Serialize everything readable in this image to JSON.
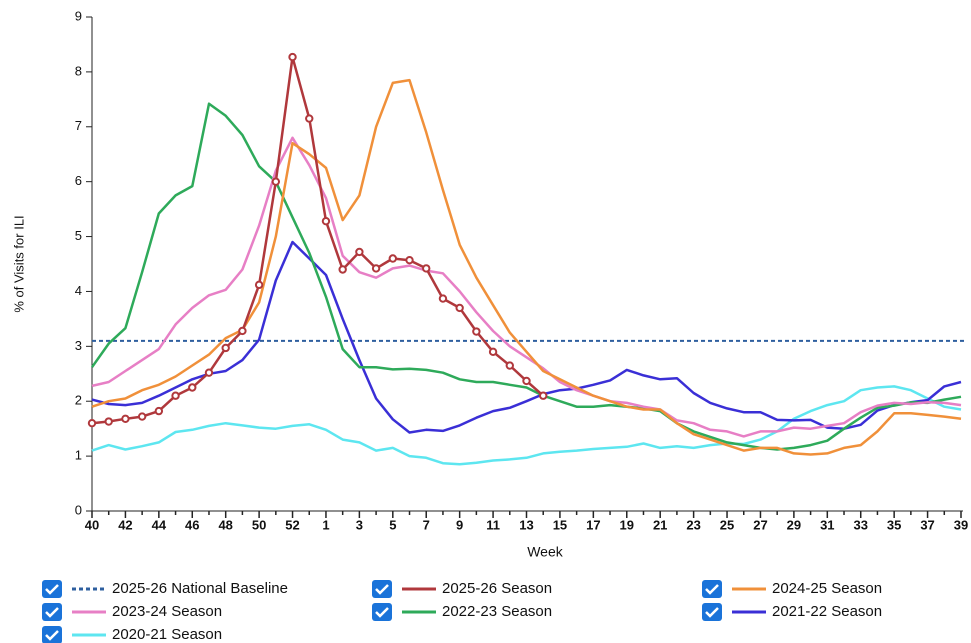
{
  "chart_data": {
    "type": "line",
    "y_label": "% of Visits for ILI",
    "x_label": "Week",
    "categories": [
      40,
      null,
      42,
      null,
      44,
      null,
      46,
      null,
      48,
      null,
      50,
      null,
      52,
      null,
      1,
      null,
      3,
      null,
      5,
      null,
      7,
      null,
      9,
      null,
      11,
      null,
      13,
      null,
      15,
      null,
      17,
      null,
      19,
      null,
      21,
      null,
      23,
      null,
      25,
      null,
      27,
      null,
      29,
      null,
      31,
      null,
      33,
      null,
      35,
      null,
      37,
      null,
      39
    ],
    "ylim": [
      0,
      9
    ],
    "yticks": [
      0,
      1,
      2,
      3,
      4,
      5,
      6,
      7,
      8,
      9
    ],
    "baseline": {
      "name": "2025-26 National Baseline",
      "value": 3.1,
      "color": "#2e5f9f"
    },
    "series": [
      {
        "name": "2025-26 Season",
        "color": "#b0383c",
        "markers": true,
        "values": [
          1.6,
          1.63,
          1.68,
          1.72,
          1.82,
          2.1,
          2.25,
          2.52,
          2.97,
          3.28,
          4.12,
          6.0,
          8.27,
          7.15,
          5.28,
          4.4,
          4.72,
          4.42,
          4.6,
          4.57,
          4.42,
          3.87,
          3.7,
          3.27,
          2.9,
          2.65,
          2.37,
          2.1,
          null,
          null,
          null,
          null,
          null,
          null,
          null,
          null,
          null,
          null,
          null,
          null,
          null,
          null,
          null,
          null,
          null,
          null,
          null,
          null,
          null,
          null,
          null,
          null,
          null
        ]
      },
      {
        "name": "2024-25 Season",
        "color": "#f0903a",
        "values": [
          1.9,
          2.0,
          2.05,
          2.2,
          2.3,
          2.45,
          2.65,
          2.85,
          3.15,
          3.3,
          3.8,
          5.0,
          6.7,
          6.5,
          6.25,
          5.3,
          5.75,
          7.0,
          7.8,
          7.85,
          6.9,
          5.85,
          4.85,
          4.25,
          3.75,
          3.25,
          2.9,
          2.55,
          2.4,
          2.25,
          2.1,
          2.0,
          1.9,
          1.85,
          1.85,
          1.6,
          1.4,
          1.3,
          1.2,
          1.1,
          1.15,
          1.15,
          1.05,
          1.03,
          1.05,
          1.15,
          1.2,
          1.45,
          1.78,
          1.78,
          1.75,
          1.72,
          1.68
        ]
      },
      {
        "name": "2023-24 Season",
        "color": "#e77fc5",
        "values": [
          2.28,
          2.35,
          2.55,
          2.75,
          2.95,
          3.4,
          3.7,
          3.93,
          4.03,
          4.4,
          5.2,
          6.2,
          6.8,
          6.3,
          5.7,
          4.65,
          4.35,
          4.25,
          4.42,
          4.47,
          4.38,
          4.33,
          4.0,
          3.62,
          3.28,
          3.0,
          2.8,
          2.6,
          2.35,
          2.2,
          2.1,
          2.0,
          1.97,
          1.9,
          1.85,
          1.65,
          1.6,
          1.48,
          1.45,
          1.36,
          1.45,
          1.45,
          1.52,
          1.5,
          1.55,
          1.6,
          1.8,
          1.92,
          1.97,
          1.95,
          1.98,
          1.97,
          1.93
        ]
      },
      {
        "name": "2022-23 Season",
        "color": "#2eaa5a",
        "values": [
          2.62,
          3.05,
          3.33,
          4.35,
          5.42,
          5.75,
          5.92,
          7.42,
          7.2,
          6.85,
          6.28,
          6.0,
          5.35,
          4.7,
          3.9,
          2.95,
          2.62,
          2.62,
          2.58,
          2.59,
          2.57,
          2.52,
          2.4,
          2.35,
          2.35,
          2.3,
          2.25,
          2.1,
          2.0,
          1.9,
          1.9,
          1.93,
          1.9,
          1.87,
          1.82,
          1.6,
          1.45,
          1.35,
          1.25,
          1.2,
          1.15,
          1.12,
          1.15,
          1.2,
          1.28,
          1.5,
          1.7,
          1.88,
          1.92,
          1.98,
          1.97,
          2.03,
          2.08
        ]
      },
      {
        "name": "2021-22 Season",
        "color": "#3a2fd6",
        "values": [
          2.03,
          1.95,
          1.93,
          1.97,
          2.1,
          2.25,
          2.4,
          2.5,
          2.55,
          2.75,
          3.12,
          4.2,
          4.9,
          4.6,
          4.3,
          3.5,
          2.75,
          2.05,
          1.67,
          1.43,
          1.48,
          1.46,
          1.56,
          1.7,
          1.82,
          1.88,
          2.0,
          2.13,
          2.2,
          2.23,
          2.3,
          2.38,
          2.57,
          2.47,
          2.4,
          2.42,
          2.15,
          1.97,
          1.87,
          1.8,
          1.8,
          1.66,
          1.65,
          1.66,
          1.52,
          1.5,
          1.57,
          1.83,
          1.93,
          1.98,
          2.02,
          2.27,
          2.35
        ]
      },
      {
        "name": "2020-21 Season",
        "color": "#5de6f0",
        "values": [
          1.1,
          1.2,
          1.12,
          1.18,
          1.25,
          1.44,
          1.48,
          1.55,
          1.6,
          1.56,
          1.52,
          1.5,
          1.55,
          1.58,
          1.48,
          1.3,
          1.25,
          1.1,
          1.15,
          1.0,
          0.97,
          0.87,
          0.85,
          0.88,
          0.92,
          0.94,
          0.97,
          1.05,
          1.08,
          1.1,
          1.13,
          1.15,
          1.17,
          1.23,
          1.15,
          1.18,
          1.15,
          1.2,
          1.23,
          1.22,
          1.3,
          1.45,
          1.68,
          1.82,
          1.93,
          2.0,
          2.2,
          2.25,
          2.27,
          2.2,
          2.05,
          1.9,
          1.85
        ]
      }
    ]
  }
}
